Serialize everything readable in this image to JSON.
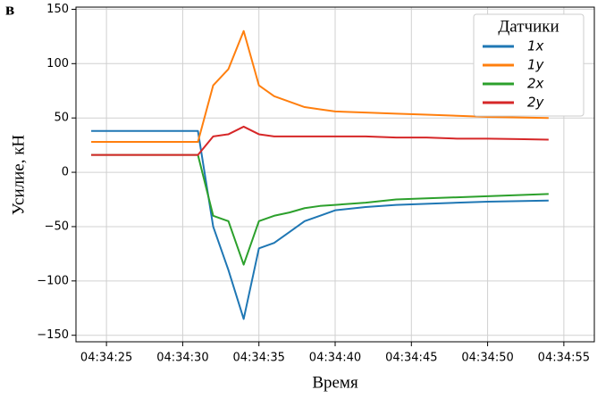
{
  "chart_data": {
    "type": "line",
    "panel_label": "в",
    "xlabel": "Время",
    "ylabel": "Усилие, кН",
    "legend_title": "Датчики",
    "legend_loc": "upper right",
    "grid": true,
    "x": [
      "04:34:24",
      "04:34:31",
      "04:34:32",
      "04:34:33",
      "04:34:34",
      "04:34:35",
      "04:34:36",
      "04:34:37",
      "04:34:38",
      "04:34:39",
      "04:34:40",
      "04:34:42",
      "04:34:44",
      "04:34:46",
      "04:34:48",
      "04:34:50",
      "04:34:52",
      "04:34:54"
    ],
    "series": [
      {
        "name": "1x",
        "color": "#1f77b4",
        "values": [
          38,
          38,
          -50,
          -90,
          -135,
          -70,
          -65,
          -55,
          -45,
          -40,
          -35,
          -32,
          -30,
          -29,
          -28,
          -27,
          -26.5,
          -26
        ]
      },
      {
        "name": "1y",
        "color": "#ff7f0e",
        "values": [
          28,
          28,
          80,
          95,
          130,
          80,
          70,
          65,
          60,
          58,
          56,
          55,
          54,
          53,
          52,
          51,
          50.5,
          50
        ]
      },
      {
        "name": "2x",
        "color": "#2ca02c",
        "values": [
          16,
          16,
          -40,
          -45,
          -85,
          -45,
          -40,
          -37,
          -33,
          -31,
          -30,
          -28,
          -25,
          -24,
          -23,
          -22,
          -21,
          -20
        ]
      },
      {
        "name": "2y",
        "color": "#d62728",
        "values": [
          16,
          16,
          33,
          35,
          42,
          35,
          33,
          33,
          33,
          33,
          33,
          33,
          32,
          32,
          31,
          31,
          30.5,
          30
        ]
      }
    ],
    "xlim": [
      "04:34:23",
      "04:34:57"
    ],
    "xticks": [
      "04:34:25",
      "04:34:30",
      "04:34:35",
      "04:34:40",
      "04:34:45",
      "04:34:50",
      "04:34:55"
    ],
    "ylim": [
      -156,
      152
    ],
    "yticks": [
      {
        "value": -150,
        "label": "−150"
      },
      {
        "value": -100,
        "label": "−100"
      },
      {
        "value": -50,
        "label": "−50"
      },
      0,
      50,
      100,
      150
    ]
  }
}
